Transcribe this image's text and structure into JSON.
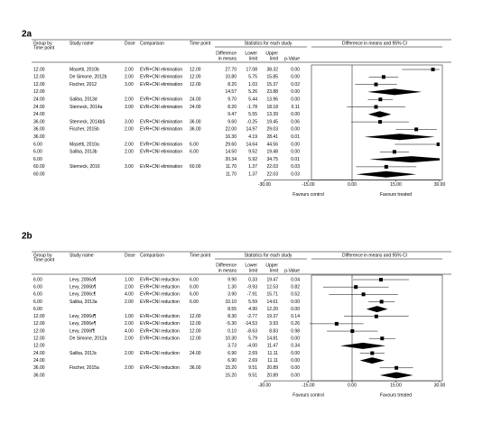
{
  "chart_data": [
    {
      "type": "forest",
      "label": "2a",
      "headers": {
        "group": [
          "Group by",
          "Time point"
        ],
        "study": "Study name",
        "dose": "Dose",
        "comparison": "Comparison",
        "time": "Time point",
        "stats": "Statistics for each study",
        "diff": [
          "Difference",
          "in means"
        ],
        "lower": [
          "Lower",
          "limit"
        ],
        "upper": [
          "Upper",
          "limit"
        ],
        "p": "p-Value",
        "plot": "Difference in means and 95% CI"
      },
      "rows": [
        {
          "group": "12.00",
          "study": "Masetti, 2010b",
          "dose": "2.00",
          "comparison": "EVR+CNI elimination",
          "time": "12.00",
          "values": [
            27.7,
            17.08,
            38.32
          ],
          "value_labels": [
            "27.70",
            "17.08",
            "38.32"
          ],
          "p": "0.00"
        },
        {
          "group": "12.00",
          "study": "De Simone, 2012b",
          "dose": "2.00",
          "comparison": "EVR+CNI elimination",
          "time": "12.00",
          "values": [
            10.8,
            5.75,
            15.85
          ],
          "value_labels": [
            "10.80",
            "5.75",
            "15.85"
          ],
          "p": "0.00"
        },
        {
          "group": "12.00",
          "study": "Fischer, 2012",
          "dose": "3.00",
          "comparison": "EVR+CNI elimination",
          "time": "12.00",
          "values": [
            8.2,
            1.03,
            15.37
          ],
          "value_labels": [
            "8.20",
            "1.03",
            "15.37"
          ],
          "p": "0.02"
        },
        {
          "group": "12.00",
          "values": [
            14.57,
            5.26,
            23.88
          ],
          "value_labels": [
            "14.57",
            "5.26",
            "23.88"
          ],
          "p": "0.00"
        },
        {
          "group": "24.00",
          "study": "Saliba, 2013d",
          "dose": "2.00",
          "comparison": "EVR+CNI elimination",
          "time": "24.00",
          "values": [
            9.7,
            5.44,
            13.96
          ],
          "value_labels": [
            "9.70",
            "5.44",
            "13.96"
          ],
          "p": "0.00"
        },
        {
          "group": "24.00",
          "study": "Sterneck, 2014a",
          "dose": "3.00",
          "comparison": "EVR+CNI elimination",
          "time": "24.00",
          "values": [
            8.2,
            -1.78,
            18.18
          ],
          "value_labels": [
            "8.20",
            "-1.78",
            "18.18"
          ],
          "p": "0.11"
        },
        {
          "group": "24.00",
          "values": [
            9.47,
            5.55,
            13.39
          ],
          "value_labels": [
            "9.47",
            "5.55",
            "13.39"
          ],
          "p": "0.00"
        },
        {
          "group": "36.00",
          "study": "Sterneck, 2014b§",
          "dose": "3.00",
          "comparison": "EVR+CNI elimination",
          "time": "36.00",
          "values": [
            9.6,
            -0.25,
            19.45
          ],
          "value_labels": [
            "9.60",
            "-0.25",
            "19.45"
          ],
          "p": "0.06"
        },
        {
          "group": "36.00",
          "study": "Fischer, 2015b",
          "dose": "2.00",
          "comparison": "EVR+CNI elimination",
          "time": "36.00",
          "values": [
            22,
            14.97,
            29.03
          ],
          "value_labels": [
            "22.00",
            "14.97",
            "29.03"
          ],
          "p": "0.00"
        },
        {
          "group": "36.00",
          "values": [
            16.3,
            4.19,
            28.41
          ],
          "value_labels": [
            "16.30",
            "4.19",
            "28.41"
          ],
          "p": "0.01"
        },
        {
          "group": "6.00",
          "study": "Masetti, 2010a",
          "dose": "2.00",
          "comparison": "EVR+CNI elimination",
          "time": "6.00",
          "values": [
            29.6,
            14.64,
            44.56
          ],
          "value_labels": [
            "29.60",
            "14.64",
            "44.56"
          ],
          "p": "0.00"
        },
        {
          "group": "6.00",
          "study": "Saliba, 2013b",
          "dose": "2.00",
          "comparison": "EVR+CNI elimination",
          "time": "6.00",
          "values": [
            14.5,
            9.52,
            19.48
          ],
          "value_labels": [
            "14.50",
            "9.52",
            "19.48"
          ],
          "p": "0.00"
        },
        {
          "group": "6.00",
          "values": [
            20.34,
            5.92,
            34.75
          ],
          "value_labels": [
            "20.34",
            "5.92",
            "34.75"
          ],
          "p": "0.01"
        },
        {
          "group": "60.00",
          "study": "Sterneck, 2016",
          "dose": "3.00",
          "comparison": "EVR+CNI elimination",
          "time": "60.00",
          "values": [
            11.7,
            1.37,
            22.03
          ],
          "value_labels": [
            "11.70",
            "1.37",
            "22.03"
          ],
          "p": "0.03"
        },
        {
          "group": "60.00",
          "values": [
            11.7,
            1.37,
            22.03
          ],
          "value_labels": [
            "11.70",
            "1.37",
            "22.03"
          ],
          "p": "0.03"
        }
      ],
      "xlim": [
        -30,
        30
      ],
      "xticks": [
        {
          "value": -30,
          "label": "-30.00"
        },
        {
          "value": -15,
          "label": "-15.00"
        },
        {
          "value": 0,
          "label": "0.00"
        },
        {
          "value": 15,
          "label": "15.00"
        },
        {
          "value": 30,
          "label": "30.00"
        }
      ],
      "xlabel_left": "Favours control",
      "xlabel_right": "Favours treated",
      "color": "#000000"
    },
    {
      "type": "forest",
      "label": "2b",
      "headers": {
        "group": [
          "Group by",
          "Time point"
        ],
        "study": "Study name",
        "dose": "Dose",
        "comparison": "Comparison",
        "time": "Time point",
        "stats": "Statistics for each study",
        "diff": [
          "Difference",
          "in means"
        ],
        "lower": [
          "Lower",
          "limit"
        ],
        "upper": [
          "Upper",
          "limit"
        ],
        "p": "p-Value",
        "plot": "Difference in means and 95% CI"
      },
      "rows": [
        {
          "group": "6.00",
          "study": "Levy, 2006a¶",
          "dose": "1.00",
          "comparison": "EVR+CNI reduction",
          "time": "6.00",
          "values": [
            9.9,
            0.33,
            19.47
          ],
          "value_labels": [
            "9.90",
            "0.33",
            "19.47"
          ],
          "p": "0.04"
        },
        {
          "group": "6.00",
          "study": "Levy, 2006b¶",
          "dose": "2.00",
          "comparison": "EVR+CNI reduction",
          "time": "6.00",
          "values": [
            1.3,
            -9.93,
            12.53
          ],
          "value_labels": [
            "1.30",
            "-9.93",
            "12.53"
          ],
          "p": "0.82"
        },
        {
          "group": "6.00",
          "study": "Levy, 2006c¶",
          "dose": "4.00",
          "comparison": "EVR+CNI reduction",
          "time": "6.00",
          "values": [
            3.9,
            -7.91,
            15.71
          ],
          "value_labels": [
            "3.90",
            "-7.91",
            "15.71"
          ],
          "p": "0.52"
        },
        {
          "group": "6.00",
          "study": "Saliba, 2013a",
          "dose": "2.00",
          "comparison": "EVR+CNI reduction",
          "time": "6.00",
          "values": [
            10.1,
            5.59,
            14.61
          ],
          "value_labels": [
            "10.10",
            "5.59",
            "14.61"
          ],
          "p": "0.00"
        },
        {
          "group": "6.00",
          "values": [
            8.55,
            4.9,
            12.2
          ],
          "value_labels": [
            "8.55",
            "4.90",
            "12.20"
          ],
          "p": "0.00"
        },
        {
          "group": "12.00",
          "study": "Levy, 2006d¶",
          "dose": "1.00",
          "comparison": "EVR+CNI reduction",
          "time": "12.00",
          "values": [
            8.3,
            -2.77,
            19.37
          ],
          "value_labels": [
            "8.30",
            "-2.77",
            "19.37"
          ],
          "p": "0.14"
        },
        {
          "group": "12.00",
          "study": "Levy, 2006e¶",
          "dose": "2.00",
          "comparison": "EVR+CNI reduction",
          "time": "12.00",
          "values": [
            -5.3,
            -14.53,
            3.93
          ],
          "value_labels": [
            "-5.30",
            "-14.53",
            "3.93"
          ],
          "p": "0.26"
        },
        {
          "group": "12.00",
          "study": "Levy, 2006f¶",
          "dose": "4.00",
          "comparison": "EVR+CNI reduction",
          "time": "12.00",
          "values": [
            0.1,
            -8.63,
            8.83
          ],
          "value_labels": [
            "0.10",
            "-8.63",
            "8.83"
          ],
          "p": "0.98"
        },
        {
          "group": "12.00",
          "study": "De Simone, 2012a",
          "dose": "2.00",
          "comparison": "EVR+CNI reduction",
          "time": "12.00",
          "values": [
            10.3,
            5.79,
            14.81
          ],
          "value_labels": [
            "10.30",
            "5.79",
            "14.81"
          ],
          "p": "0.00"
        },
        {
          "group": "12.00",
          "values": [
            3.73,
            -4,
            11.47
          ],
          "value_labels": [
            "3.73",
            "-4.00",
            "11.47"
          ],
          "p": "0.34"
        },
        {
          "group": "24.00",
          "study": "Saliba, 2013c",
          "dose": "2.00",
          "comparison": "EVR+CNI reduction",
          "time": "24.00",
          "values": [
            6.9,
            2.69,
            11.11
          ],
          "value_labels": [
            "6.90",
            "2.69",
            "11.11"
          ],
          "p": "0.00"
        },
        {
          "group": "24.00",
          "values": [
            6.9,
            2.69,
            11.11
          ],
          "value_labels": [
            "6.90",
            "2.69",
            "11.11"
          ],
          "p": "0.00"
        },
        {
          "group": "36.00",
          "study": "Fischer, 2015a",
          "dose": "2.00",
          "comparison": "EVR+CNI reduction",
          "time": "36.00",
          "values": [
            15.2,
            9.51,
            20.89
          ],
          "value_labels": [
            "15.20",
            "9.51",
            "20.89"
          ],
          "p": "0.00"
        },
        {
          "group": "36.00",
          "values": [
            15.2,
            9.51,
            20.89
          ],
          "value_labels": [
            "15.20",
            "9.51",
            "20.89"
          ],
          "p": "0.00"
        }
      ],
      "xlim": [
        -30,
        30
      ],
      "xticks": [
        {
          "value": -30,
          "label": "-30.00"
        },
        {
          "value": -15,
          "label": "-15.00"
        },
        {
          "value": 0,
          "label": "0.00"
        },
        {
          "value": 15,
          "label": "15.00"
        },
        {
          "value": 30,
          "label": "30.00"
        }
      ],
      "xlabel_left": "Favours control",
      "xlabel_right": "Favours treated",
      "color": "#000000"
    }
  ]
}
